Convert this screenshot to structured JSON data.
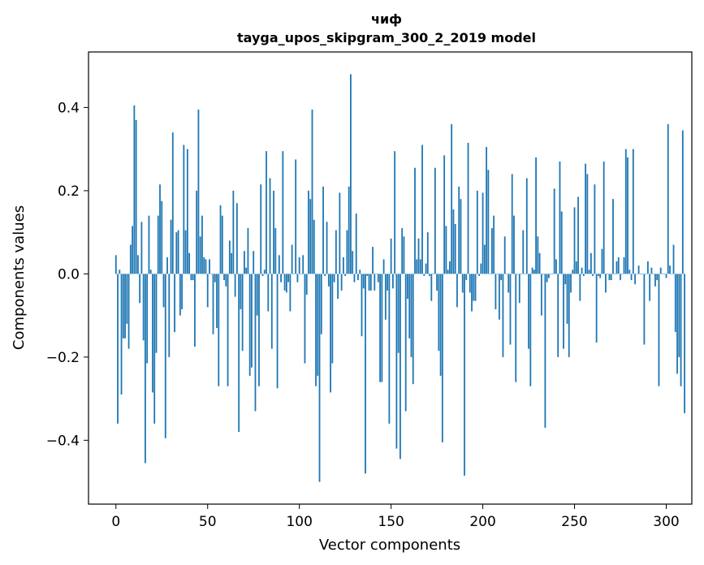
{
  "chart_data": {
    "type": "bar",
    "title_line1": "чиф",
    "title_line2": "tayga_upos_skipgram_300_2_2019 model",
    "xlabel": "Vector components",
    "ylabel": "Components values",
    "xlim": [
      -14.95,
      313.95
    ],
    "ylim": [
      -0.5535,
      0.5335
    ],
    "xticks": [
      0,
      50,
      100,
      150,
      200,
      250,
      300
    ],
    "xtick_labels": [
      "0",
      "50",
      "100",
      "150",
      "200",
      "250",
      "300"
    ],
    "yticks": [
      -0.4,
      -0.2,
      0.0,
      0.2,
      0.4
    ],
    "ytick_labels": [
      "−0.4",
      "−0.2",
      "0.0",
      "0.2",
      "0.4"
    ],
    "bar_color": "#1f77b4",
    "grid": false,
    "values": [
      0.045,
      -0.36,
      0.01,
      -0.29,
      -0.155,
      -0.155,
      -0.12,
      -0.18,
      0.07,
      0.115,
      0.405,
      0.37,
      0.045,
      -0.07,
      0.125,
      -0.16,
      -0.455,
      -0.215,
      0.14,
      0.01,
      -0.285,
      -0.36,
      -0.19,
      0.14,
      0.215,
      0.175,
      -0.08,
      -0.395,
      0.04,
      -0.2,
      0.13,
      0.34,
      -0.14,
      0.1,
      0.105,
      -0.1,
      -0.085,
      0.31,
      0.105,
      0.3,
      0.05,
      -0.015,
      -0.015,
      -0.175,
      0.2,
      0.395,
      0.09,
      0.14,
      0.04,
      0.035,
      -0.08,
      0.035,
      0.0,
      -0.145,
      -0.02,
      -0.13,
      -0.27,
      0.165,
      0.14,
      -0.015,
      -0.03,
      -0.27,
      0.08,
      0.05,
      0.2,
      -0.055,
      0.17,
      -0.38,
      -0.085,
      -0.185,
      0.055,
      0.015,
      0.11,
      -0.245,
      -0.225,
      0.055,
      -0.33,
      -0.1,
      -0.27,
      0.215,
      -0.005,
      0.01,
      0.295,
      -0.09,
      0.23,
      -0.18,
      0.2,
      0.11,
      -0.275,
      0.045,
      -0.02,
      0.295,
      -0.04,
      -0.045,
      -0.02,
      -0.09,
      0.07,
      0.0,
      0.275,
      -0.02,
      0.04,
      0.0,
      0.045,
      -0.215,
      -0.05,
      0.2,
      0.18,
      0.395,
      0.13,
      -0.27,
      -0.245,
      -0.5,
      -0.145,
      0.21,
      -0.005,
      0.125,
      -0.03,
      -0.285,
      -0.215,
      -0.02,
      0.105,
      -0.06,
      0.195,
      -0.04,
      0.04,
      -0.005,
      0.105,
      0.21,
      0.48,
      0.055,
      -0.02,
      0.145,
      -0.015,
      0.01,
      -0.15,
      -0.035,
      -0.48,
      -0.005,
      -0.04,
      -0.04,
      0.065,
      -0.04,
      0.0,
      -0.02,
      -0.26,
      -0.26,
      0.035,
      -0.11,
      -0.04,
      -0.36,
      0.085,
      -0.035,
      0.295,
      -0.42,
      -0.19,
      -0.445,
      0.11,
      0.09,
      -0.33,
      -0.06,
      -0.155,
      -0.2,
      -0.265,
      0.255,
      0.035,
      0.085,
      0.035,
      0.31,
      -0.005,
      0.025,
      0.1,
      -0.005,
      -0.065,
      0.0,
      0.255,
      -0.04,
      -0.185,
      -0.245,
      -0.405,
      0.285,
      0.115,
      0.01,
      0.03,
      0.36,
      0.155,
      0.12,
      -0.08,
      0.21,
      0.18,
      -0.045,
      -0.485,
      -0.015,
      0.315,
      -0.045,
      -0.09,
      -0.065,
      -0.065,
      0.2,
      -0.005,
      0.025,
      0.195,
      0.07,
      0.305,
      0.25,
      0.0,
      0.11,
      0.14,
      -0.085,
      0.0,
      -0.11,
      -0.015,
      -0.2,
      0.09,
      0.0,
      -0.045,
      -0.17,
      0.24,
      0.14,
      -0.26,
      0.0,
      -0.07,
      0.0,
      0.105,
      0.0,
      0.23,
      -0.18,
      -0.27,
      0.015,
      0.01,
      0.28,
      0.09,
      0.05,
      -0.1,
      0.0,
      -0.37,
      -0.02,
      -0.01,
      0.0,
      0.0,
      0.205,
      0.035,
      -0.2,
      0.27,
      0.15,
      -0.18,
      -0.025,
      -0.12,
      -0.2,
      -0.045,
      0.01,
      0.16,
      0.03,
      0.185,
      -0.065,
      0.015,
      -0.005,
      0.265,
      0.24,
      0.01,
      0.05,
      -0.005,
      0.215,
      -0.165,
      -0.005,
      -0.01,
      0.06,
      0.27,
      -0.045,
      0.0,
      -0.015,
      -0.015,
      0.18,
      0.0,
      0.03,
      0.04,
      -0.015,
      0.0,
      0.04,
      0.3,
      0.28,
      0.01,
      -0.015,
      0.3,
      -0.025,
      0.0,
      0.02,
      0.0,
      0.0,
      -0.17,
      0.0,
      0.03,
      -0.065,
      0.015,
      0.0,
      -0.03,
      -0.015,
      -0.27,
      0.015,
      0.0,
      0.0,
      -0.01,
      0.36,
      0.02,
      0.0,
      0.07,
      -0.14,
      -0.24,
      -0.2,
      -0.27,
      0.345,
      -0.335
    ]
  }
}
